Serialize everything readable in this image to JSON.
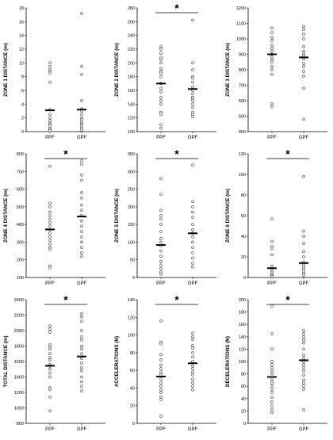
{
  "chart_data": [
    {
      "type": "scatter",
      "ylabel": "ZONE 1 DISTANCE (m)",
      "ylim": [
        0,
        18
      ],
      "yticks": [
        0,
        2,
        4,
        6,
        8,
        10,
        12,
        14,
        16,
        18
      ],
      "categories": [
        "PPF",
        "GPF"
      ],
      "significant": false,
      "significance_label": "",
      "series": [
        {
          "name": "PPF",
          "points": [
            10,
            9.5,
            9,
            8.8,
            8.5,
            7.2,
            3.2,
            2.5,
            2,
            1.6,
            1.2,
            1,
            0.8,
            0.5,
            0.3,
            0.1
          ],
          "mean": 3.1
        },
        {
          "name": "GPF",
          "points": [
            17.2,
            9.5,
            8.3,
            4.5,
            3.3,
            3,
            2.5,
            2,
            1.8,
            1.5,
            1.2,
            1,
            0.8,
            0.5,
            0.2
          ],
          "mean": 3.2
        }
      ]
    },
    {
      "type": "scatter",
      "ylabel": "ZONE 2 DISTANCE (m)",
      "ylim": [
        100,
        280
      ],
      "yticks": [
        100,
        120,
        140,
        160,
        180,
        200,
        220,
        240,
        260,
        280
      ],
      "categories": [
        "PPF",
        "GPF"
      ],
      "significant": true,
      "significance_label": "*",
      "series": [
        {
          "name": "PPF",
          "points": [
            224,
            220,
            214,
            208,
            205,
            200,
            192,
            188,
            185,
            180,
            170,
            163,
            158,
            150,
            145,
            140,
            128,
            125,
            110,
            105
          ],
          "mean": 170
        },
        {
          "name": "GPF",
          "points": [
            262,
            200,
            190,
            180,
            178,
            172,
            165,
            160,
            155,
            150,
            148,
            145,
            140,
            135,
            128,
            125,
            122
          ],
          "mean": 162
        }
      ]
    },
    {
      "type": "scatter",
      "ylabel": "ZONE 3 DISTANCE (m)",
      "ylim": [
        400,
        1200
      ],
      "yticks": [
        400,
        500,
        600,
        700,
        800,
        900,
        1000,
        1100,
        1200
      ],
      "categories": [
        "PPF",
        "GPF"
      ],
      "significant": false,
      "significance_label": "",
      "series": [
        {
          "name": "PPF",
          "points": [
            1070,
            1040,
            1010,
            990,
            960,
            940,
            920,
            900,
            880,
            860,
            850,
            820,
            800,
            770,
            580,
            560
          ],
          "mean": 900
        },
        {
          "name": "GPF",
          "points": [
            1080,
            1060,
            1030,
            1000,
            950,
            920,
            900,
            890,
            870,
            840,
            820,
            790,
            760,
            680,
            480
          ],
          "mean": 880
        }
      ]
    },
    {
      "type": "scatter",
      "ylabel": "ZONE 4 DISTANCE (m)",
      "ylim": [
        100,
        800
      ],
      "yticks": [
        100,
        200,
        300,
        400,
        500,
        600,
        700,
        800
      ],
      "categories": [
        "PPF",
        "GPF"
      ],
      "significant": true,
      "significance_label": "*",
      "series": [
        {
          "name": "PPF",
          "points": [
            730,
            520,
            500,
            470,
            450,
            430,
            410,
            390,
            370,
            350,
            330,
            310,
            290,
            270,
            260,
            165,
            155
          ],
          "mean": 372
        },
        {
          "name": "GPF",
          "points": [
            760,
            740,
            680,
            650,
            580,
            550,
            510,
            480,
            450,
            420,
            390,
            360,
            330,
            300,
            270,
            240,
            220
          ],
          "mean": 445
        }
      ]
    },
    {
      "type": "scatter",
      "ylabel": "ZONE 5 DISTANCE (m)",
      "ylim": [
        0,
        350
      ],
      "yticks": [
        0,
        50,
        100,
        150,
        200,
        250,
        300,
        350
      ],
      "categories": [
        "PPF",
        "GPF"
      ],
      "significant": true,
      "significance_label": "*",
      "series": [
        {
          "name": "PPF",
          "points": [
            280,
            235,
            190,
            175,
            165,
            150,
            130,
            110,
            100,
            90,
            75,
            60,
            45,
            35,
            25,
            15,
            10
          ],
          "mean": 92
        },
        {
          "name": "GPF",
          "points": [
            318,
            215,
            200,
            185,
            170,
            150,
            135,
            125,
            115,
            100,
            85,
            70,
            55,
            40,
            30
          ],
          "mean": 125
        }
      ]
    },
    {
      "type": "scatter",
      "ylabel": "ZONE 6 DISTANCE (m)",
      "ylim": [
        0,
        120
      ],
      "yticks": [
        0,
        20,
        40,
        60,
        80,
        100,
        120
      ],
      "categories": [
        "PPF",
        "GPF"
      ],
      "significant": true,
      "significance_label": "*",
      "series": [
        {
          "name": "PPF",
          "points": [
            57,
            35,
            30,
            28,
            22,
            11,
            8,
            5,
            3,
            2,
            1
          ],
          "mean": 9
        },
        {
          "name": "GPF",
          "points": [
            98,
            45,
            40,
            33,
            25,
            20,
            15,
            12,
            10,
            8,
            6,
            4,
            2
          ],
          "mean": 14
        }
      ]
    },
    {
      "type": "scatter",
      "ylabel": "TOTAL DISTANCE (m)",
      "ylim": [
        800,
        2400
      ],
      "yticks": [
        800,
        1000,
        1200,
        1400,
        1600,
        1800,
        2000,
        2200,
        2400
      ],
      "categories": [
        "PPF",
        "GPF"
      ],
      "significant": true,
      "significance_label": "*",
      "series": [
        {
          "name": "PPF",
          "points": [
            2060,
            2020,
            1980,
            1820,
            1790,
            1760,
            1700,
            1650,
            1620,
            1560,
            1540,
            1500,
            1450,
            1400,
            1260,
            1240,
            1140,
            960
          ],
          "mean": 1545
        },
        {
          "name": "GPF",
          "points": [
            2220,
            2180,
            2120,
            2000,
            1920,
            1880,
            1800,
            1760,
            1700,
            1640,
            1580,
            1520,
            1480,
            1400,
            1340,
            1280,
            1220
          ],
          "mean": 1665
        }
      ]
    },
    {
      "type": "scatter",
      "ylabel": "ACCELERATIONS (N)",
      "ylim": [
        0,
        140
      ],
      "yticks": [
        0,
        20,
        40,
        60,
        80,
        100,
        120,
        140
      ],
      "categories": [
        "PPF",
        "GPF"
      ],
      "significant": true,
      "significance_label": "*",
      "series": [
        {
          "name": "PPF",
          "points": [
            116,
            92,
            90,
            78,
            72,
            66,
            62,
            58,
            55,
            50,
            46,
            42,
            38,
            35,
            30,
            27,
            8
          ],
          "mean": 53
        },
        {
          "name": "GPF",
          "points": [
            102,
            98,
            95,
            88,
            85,
            80,
            75,
            70,
            65,
            62,
            58,
            55,
            50,
            46,
            42,
            38
          ],
          "mean": 68
        }
      ]
    },
    {
      "type": "scatter",
      "ylabel": "DECELERATIONS (N)",
      "ylim": [
        0,
        200
      ],
      "yticks": [
        0,
        20,
        40,
        60,
        80,
        100,
        120,
        140,
        160,
        180,
        200
      ],
      "categories": [
        "PPF",
        "GPF"
      ],
      "significant": true,
      "significance_label": "*",
      "series": [
        {
          "name": "PPF",
          "points": [
            190,
            145,
            120,
            100,
            95,
            90,
            85,
            80,
            70,
            65,
            60,
            55,
            50,
            42,
            35,
            28,
            22,
            18
          ],
          "mean": 75
        },
        {
          "name": "GPF",
          "points": [
            150,
            145,
            140,
            135,
            130,
            120,
            110,
            105,
            100,
            95,
            90,
            85,
            78,
            70,
            65,
            60,
            55,
            22
          ],
          "mean": 102
        }
      ]
    }
  ]
}
